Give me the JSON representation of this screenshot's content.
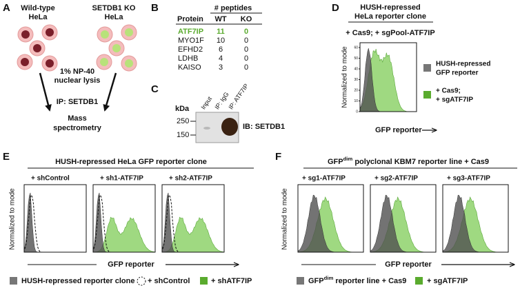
{
  "panel_a": {
    "letter": "A",
    "wild_type": [
      "Wild-type",
      "HeLa"
    ],
    "knockout": [
      "SETDB1 KO",
      "HeLa"
    ],
    "lysis": [
      "1% NP-40",
      "nuclear lysis"
    ],
    "ip": "IP: SETDB1",
    "readout": [
      "Mass",
      "spectrometry"
    ]
  },
  "panel_b": {
    "letter": "B",
    "group_header": "# peptides",
    "columns": [
      "Protein",
      "WT",
      "KO"
    ],
    "rows": [
      [
        "ATF7IP",
        11,
        0
      ],
      [
        "MYO1F",
        10,
        0
      ],
      [
        "EFHD2",
        6,
        0
      ],
      [
        "LDHB",
        4,
        0
      ],
      [
        "KAISO",
        3,
        0
      ]
    ]
  },
  "panel_c": {
    "letter": "C",
    "unit": "kDa",
    "markers": [
      250,
      150
    ],
    "lanes": [
      "Input",
      "IP: IgG",
      "IP: ATF7IP"
    ],
    "blot": "IB: SETDB1"
  },
  "panel_d": {
    "letter": "D",
    "title": [
      "HUSH-repressed",
      "HeLa reporter clone"
    ],
    "condition": "+ Cas9; + sgPool-ATF7IP",
    "y_label": "Normalized to mode",
    "y_ticks": [
      0,
      10,
      20,
      30,
      40,
      50,
      60
    ],
    "x_label": "GFP reporter",
    "legend": [
      [
        "HUSH-repressed",
        "GFP reporter"
      ],
      [
        "+ Cas9;",
        "+ sgATF7IP"
      ]
    ]
  },
  "panel_e": {
    "letter": "E",
    "title": "HUSH-repressed HeLa GFP reporter clone",
    "conditions": [
      "+ shControl",
      "+ sh1-ATF7IP",
      "+ sh2-ATF7IP"
    ],
    "y_label": "Normalized to mode",
    "x_label": "GFP reporter",
    "legend": [
      "HUSH-repressed reporter clone",
      "+ shControl",
      "+ shATF7IP"
    ]
  },
  "panel_f": {
    "letter": "F",
    "title": {
      "prefix": "GFP",
      "superscript": "dim",
      "suffix": " polyclonal KBM7 reporter line + Cas9"
    },
    "conditions": [
      "+ sg1-ATF7IP",
      "+ sg2-ATF7IP",
      "+ sg3-ATF7IP"
    ],
    "y_label": "Normalized to mode",
    "x_label": "GFP reporter",
    "legend": [
      {
        "prefix": "GFP",
        "superscript": "dim",
        "suffix": " reporter line + Cas9"
      },
      "+ sgATF7IP"
    ]
  }
}
